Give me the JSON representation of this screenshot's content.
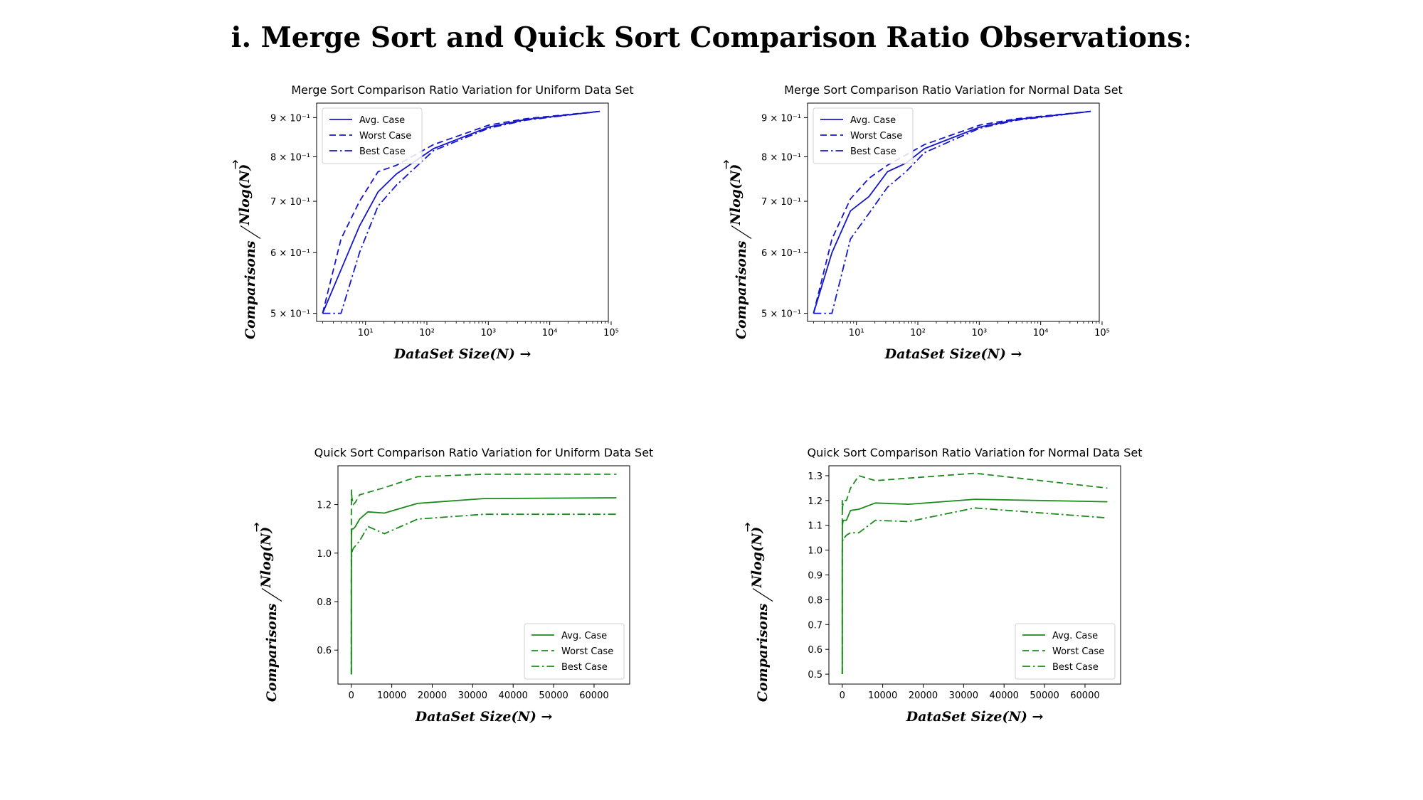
{
  "page": {
    "title_prefix": "i.",
    "title_main": "Merge Sort and Quick Sort Comparison Ratio Observations",
    "title_suffix": ":"
  },
  "colors": {
    "merge": "#1515cc",
    "quick": "#1a8a1a"
  },
  "chart_data": [
    {
      "id": "merge-uniform",
      "type": "line",
      "title": "Merge Sort Comparison Ratio Variation for Uniform Data Set",
      "xlabel": "DataSet Size(N) →",
      "ylabel_num": "Comparisons",
      "ylabel_den": "Nlog(N)",
      "ylabel_arrow": "→",
      "xscale": "log",
      "yscale": "log",
      "xlim": [
        1.6,
        90000
      ],
      "ylim": [
        0.488,
        0.94
      ],
      "x_ticks": [
        {
          "value": 10,
          "label": "10¹"
        },
        {
          "value": 100,
          "label": "10²"
        },
        {
          "value": 1000,
          "label": "10³"
        },
        {
          "value": 10000,
          "label": "10⁴"
        },
        {
          "value": 100000,
          "label": "10⁵"
        }
      ],
      "y_ticks": [
        {
          "value": 0.5,
          "label": "5 × 10⁻¹"
        },
        {
          "value": 0.6,
          "label": "6 × 10⁻¹"
        },
        {
          "value": 0.7,
          "label": "7 × 10⁻¹"
        },
        {
          "value": 0.8,
          "label": "8 × 10⁻¹"
        },
        {
          "value": 0.9,
          "label": "9 × 10⁻¹"
        }
      ],
      "legend": "upper-left",
      "series": [
        {
          "name": "Avg. Case",
          "style": "solid",
          "x": [
            2,
            4,
            8,
            16,
            32,
            128,
            1024,
            4096,
            65536
          ],
          "y": [
            0.5,
            0.57,
            0.65,
            0.72,
            0.76,
            0.82,
            0.875,
            0.895,
            0.917
          ]
        },
        {
          "name": "Worst Case",
          "style": "dashed",
          "x": [
            2,
            4,
            8,
            16,
            32,
            128,
            1024,
            4096,
            65536
          ],
          "y": [
            0.5,
            0.625,
            0.7,
            0.765,
            0.78,
            0.83,
            0.88,
            0.897,
            0.917
          ]
        },
        {
          "name": "Best Case",
          "style": "dashdot",
          "x": [
            2,
            4,
            8,
            16,
            32,
            128,
            1024,
            4096,
            65536
          ],
          "y": [
            0.5,
            0.5,
            0.6,
            0.69,
            0.735,
            0.815,
            0.872,
            0.893,
            0.917
          ]
        }
      ]
    },
    {
      "id": "merge-normal",
      "type": "line",
      "title": "Merge Sort Comparison Ratio Variation for Normal Data Set",
      "xlabel": "DataSet Size(N) →",
      "ylabel_num": "Comparisons",
      "ylabel_den": "Nlog(N)",
      "ylabel_arrow": "→",
      "xscale": "log",
      "yscale": "log",
      "xlim": [
        1.6,
        90000
      ],
      "ylim": [
        0.488,
        0.94
      ],
      "x_ticks": [
        {
          "value": 10,
          "label": "10¹"
        },
        {
          "value": 100,
          "label": "10²"
        },
        {
          "value": 1000,
          "label": "10³"
        },
        {
          "value": 10000,
          "label": "10⁴"
        },
        {
          "value": 100000,
          "label": "10⁵"
        }
      ],
      "y_ticks": [
        {
          "value": 0.5,
          "label": "5 × 10⁻¹"
        },
        {
          "value": 0.6,
          "label": "6 × 10⁻¹"
        },
        {
          "value": 0.7,
          "label": "7 × 10⁻¹"
        },
        {
          "value": 0.8,
          "label": "8 × 10⁻¹"
        },
        {
          "value": 0.9,
          "label": "9 × 10⁻¹"
        }
      ],
      "legend": "upper-left",
      "series": [
        {
          "name": "Avg. Case",
          "style": "solid",
          "x": [
            2,
            4,
            8,
            16,
            32,
            64,
            128,
            1024,
            4096,
            65536
          ],
          "y": [
            0.5,
            0.6,
            0.68,
            0.71,
            0.765,
            0.785,
            0.82,
            0.875,
            0.895,
            0.917
          ]
        },
        {
          "name": "Worst Case",
          "style": "dashed",
          "x": [
            2,
            4,
            8,
            16,
            32,
            128,
            1024,
            4096,
            65536
          ],
          "y": [
            0.5,
            0.625,
            0.705,
            0.75,
            0.78,
            0.83,
            0.88,
            0.897,
            0.917
          ]
        },
        {
          "name": "Best Case",
          "style": "dashdot",
          "x": [
            2,
            4,
            8,
            16,
            32,
            64,
            128,
            1024,
            4096,
            65536
          ],
          "y": [
            0.5,
            0.5,
            0.625,
            0.675,
            0.73,
            0.765,
            0.81,
            0.872,
            0.893,
            0.917
          ]
        }
      ]
    },
    {
      "id": "quick-uniform",
      "type": "line",
      "title": "Quick Sort Comparison Ratio Variation for Uniform Data Set",
      "xlabel": "DataSet Size(N) →",
      "ylabel_num": "Comparisons",
      "ylabel_den": "Nlog(N)",
      "ylabel_arrow": "→",
      "xscale": "linear",
      "yscale": "linear",
      "xlim": [
        -3300,
        68800
      ],
      "ylim": [
        0.46,
        1.36
      ],
      "x_ticks": [
        {
          "value": 0,
          "label": "0"
        },
        {
          "value": 10000,
          "label": "10000"
        },
        {
          "value": 20000,
          "label": "20000"
        },
        {
          "value": 30000,
          "label": "30000"
        },
        {
          "value": 40000,
          "label": "40000"
        },
        {
          "value": 50000,
          "label": "50000"
        },
        {
          "value": 60000,
          "label": "60000"
        }
      ],
      "y_ticks": [
        {
          "value": 0.6,
          "label": "0.6"
        },
        {
          "value": 0.8,
          "label": "0.8"
        },
        {
          "value": 1.0,
          "label": "1.0"
        },
        {
          "value": 1.2,
          "label": "1.2"
        }
      ],
      "legend": "lower-right",
      "series": [
        {
          "name": "Avg. Case",
          "style": "solid",
          "x": [
            2,
            4,
            8,
            16,
            32,
            64,
            128,
            256,
            512,
            1024,
            2048,
            4096,
            8192,
            16384,
            32768,
            65536
          ],
          "y": [
            0.5,
            0.85,
            0.95,
            1.0,
            1.05,
            1.08,
            1.1,
            1.1,
            1.1,
            1.11,
            1.14,
            1.17,
            1.165,
            1.205,
            1.225,
            1.228
          ]
        },
        {
          "name": "Worst Case",
          "style": "dashed",
          "x": [
            2,
            4,
            8,
            16,
            32,
            64,
            128,
            256,
            512,
            1024,
            2048,
            4096,
            8192,
            16384,
            32768,
            65536
          ],
          "y": [
            0.5,
            1.0,
            1.15,
            1.2,
            1.24,
            1.26,
            1.23,
            1.22,
            1.2,
            1.21,
            1.24,
            1.25,
            1.27,
            1.315,
            1.325,
            1.325
          ]
        },
        {
          "name": "Best Case",
          "style": "dashdot",
          "x": [
            2,
            4,
            8,
            16,
            32,
            64,
            128,
            256,
            512,
            1024,
            2048,
            4096,
            8192,
            16384,
            32768,
            65536
          ],
          "y": [
            0.5,
            0.8,
            0.88,
            0.93,
            0.96,
            0.98,
            1.0,
            1.01,
            1.02,
            1.03,
            1.05,
            1.11,
            1.08,
            1.14,
            1.16,
            1.16
          ]
        }
      ]
    },
    {
      "id": "quick-normal",
      "type": "line",
      "title": "Quick Sort Comparison Ratio Variation for Normal Data Set",
      "xlabel": "DataSet Size(N) →",
      "ylabel_num": "Comparisons",
      "ylabel_den": "Nlog(N)",
      "ylabel_arrow": "→",
      "xscale": "linear",
      "yscale": "linear",
      "xlim": [
        -3300,
        68800
      ],
      "ylim": [
        0.46,
        1.34
      ],
      "x_ticks": [
        {
          "value": 0,
          "label": "0"
        },
        {
          "value": 10000,
          "label": "10000"
        },
        {
          "value": 20000,
          "label": "20000"
        },
        {
          "value": 30000,
          "label": "30000"
        },
        {
          "value": 40000,
          "label": "40000"
        },
        {
          "value": 50000,
          "label": "50000"
        },
        {
          "value": 60000,
          "label": "60000"
        }
      ],
      "y_ticks": [
        {
          "value": 0.5,
          "label": "0.5"
        },
        {
          "value": 0.6,
          "label": "0.6"
        },
        {
          "value": 0.7,
          "label": "0.7"
        },
        {
          "value": 0.8,
          "label": "0.8"
        },
        {
          "value": 0.9,
          "label": "0.9"
        },
        {
          "value": 1.0,
          "label": "1.0"
        },
        {
          "value": 1.1,
          "label": "1.1"
        },
        {
          "value": 1.2,
          "label": "1.2"
        },
        {
          "value": 1.3,
          "label": "1.3"
        }
      ],
      "legend": "lower-right",
      "series": [
        {
          "name": "Avg. Case",
          "style": "solid",
          "x": [
            2,
            4,
            8,
            16,
            32,
            64,
            128,
            256,
            512,
            1024,
            2048,
            4096,
            8192,
            16384,
            32768,
            65536
          ],
          "y": [
            0.5,
            0.9,
            1.0,
            1.05,
            1.08,
            1.1,
            1.11,
            1.12,
            1.12,
            1.12,
            1.16,
            1.165,
            1.19,
            1.185,
            1.205,
            1.195
          ]
        },
        {
          "name": "Worst Case",
          "style": "dashed",
          "x": [
            2,
            4,
            8,
            16,
            32,
            64,
            128,
            256,
            512,
            1024,
            2048,
            4096,
            8192,
            16384,
            32768,
            65536
          ],
          "y": [
            0.5,
            1.1,
            1.2,
            1.18,
            1.15,
            1.17,
            1.18,
            1.19,
            1.2,
            1.2,
            1.25,
            1.3,
            1.28,
            1.29,
            1.31,
            1.25
          ]
        },
        {
          "name": "Best Case",
          "style": "dashdot",
          "x": [
            2,
            4,
            8,
            16,
            32,
            64,
            128,
            256,
            512,
            1024,
            2048,
            4096,
            8192,
            16384,
            32768,
            65536
          ],
          "y": [
            0.5,
            0.85,
            0.95,
            1.0,
            1.02,
            1.03,
            1.04,
            1.05,
            1.05,
            1.06,
            1.07,
            1.07,
            1.12,
            1.115,
            1.17,
            1.13
          ]
        }
      ]
    }
  ]
}
